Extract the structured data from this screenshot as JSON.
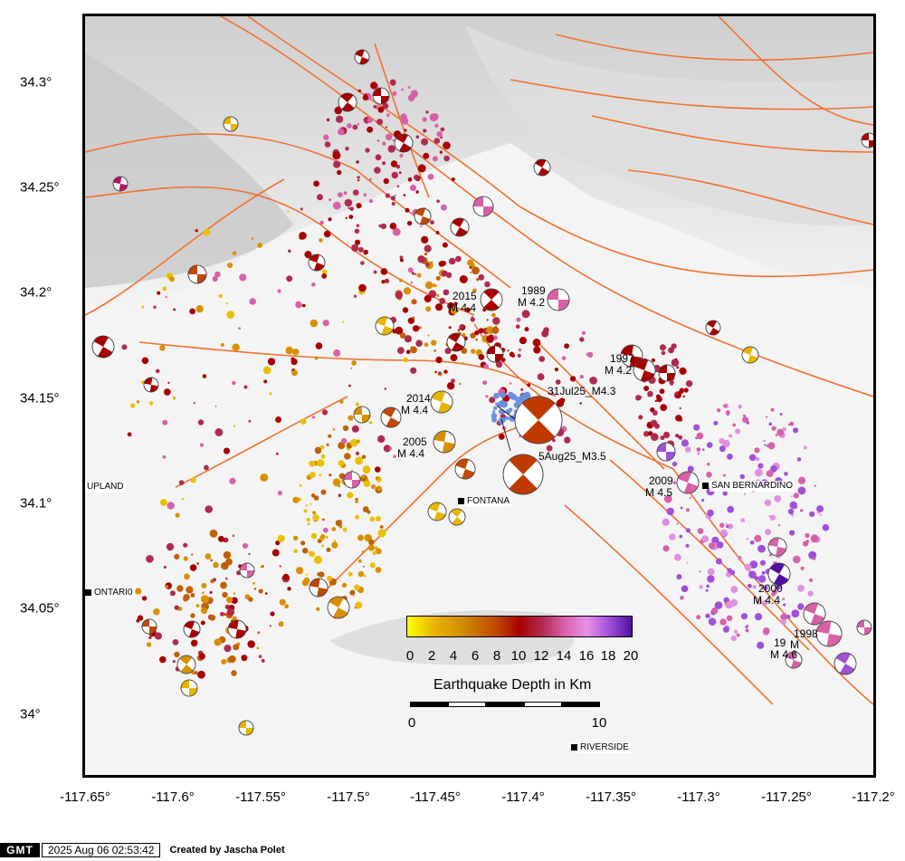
{
  "map": {
    "lat_labels": [
      "34.3°",
      "34.25°",
      "34.2°",
      "34.15°",
      "34.1°",
      "34.05°",
      "34°"
    ],
    "lon_labels": [
      "-117.65°",
      "-117.6°",
      "-117.55°",
      "-117.5°",
      "-117.45°",
      "-117.4°",
      "-117.35°",
      "-117.3°",
      "-117.25°",
      "-117.2°"
    ],
    "places": {
      "upland": "UPLAND",
      "ontario": "ONTARI0",
      "fontana": "FONTANA",
      "san_bernardino": "SAN BERNARDINO",
      "riverside": "RIVERSIDE"
    },
    "event_labels": {
      "e2015": [
        "2015",
        "M 4.4"
      ],
      "e1989": [
        "1989",
        "M 4.2"
      ],
      "e1997": [
        "1997",
        "M 4.2"
      ],
      "e2014": [
        "2014",
        "M 4.4"
      ],
      "e2005": [
        "2005",
        "M 4.4"
      ],
      "e2009": [
        "2009",
        "M 4.5"
      ],
      "e2000": [
        "2000",
        "M 4.4"
      ],
      "e1998": [
        "1998",
        "M",
        "19",
        "M 4.6"
      ],
      "main_2025": "31Jul25_M4.3",
      "after_2025": "5Aug25_M3.5"
    },
    "colors": {
      "fault": "#f07030",
      "mechanism_main": "#c03a00",
      "shade_dark": "#b8b8b8",
      "background": "#f4f4f4"
    }
  },
  "legend": {
    "depth_ticks": [
      "0",
      "2",
      "4",
      "6",
      "8",
      "10",
      "12",
      "14",
      "16",
      "18",
      "20"
    ],
    "depth_title": "Earthquake Depth in Km",
    "scale_ticks": [
      "0",
      "10"
    ]
  },
  "footer": {
    "logo": "GMT",
    "timestamp": "2025 Aug 06 02:53:42",
    "credit": "Created by Jascha Polet"
  }
}
